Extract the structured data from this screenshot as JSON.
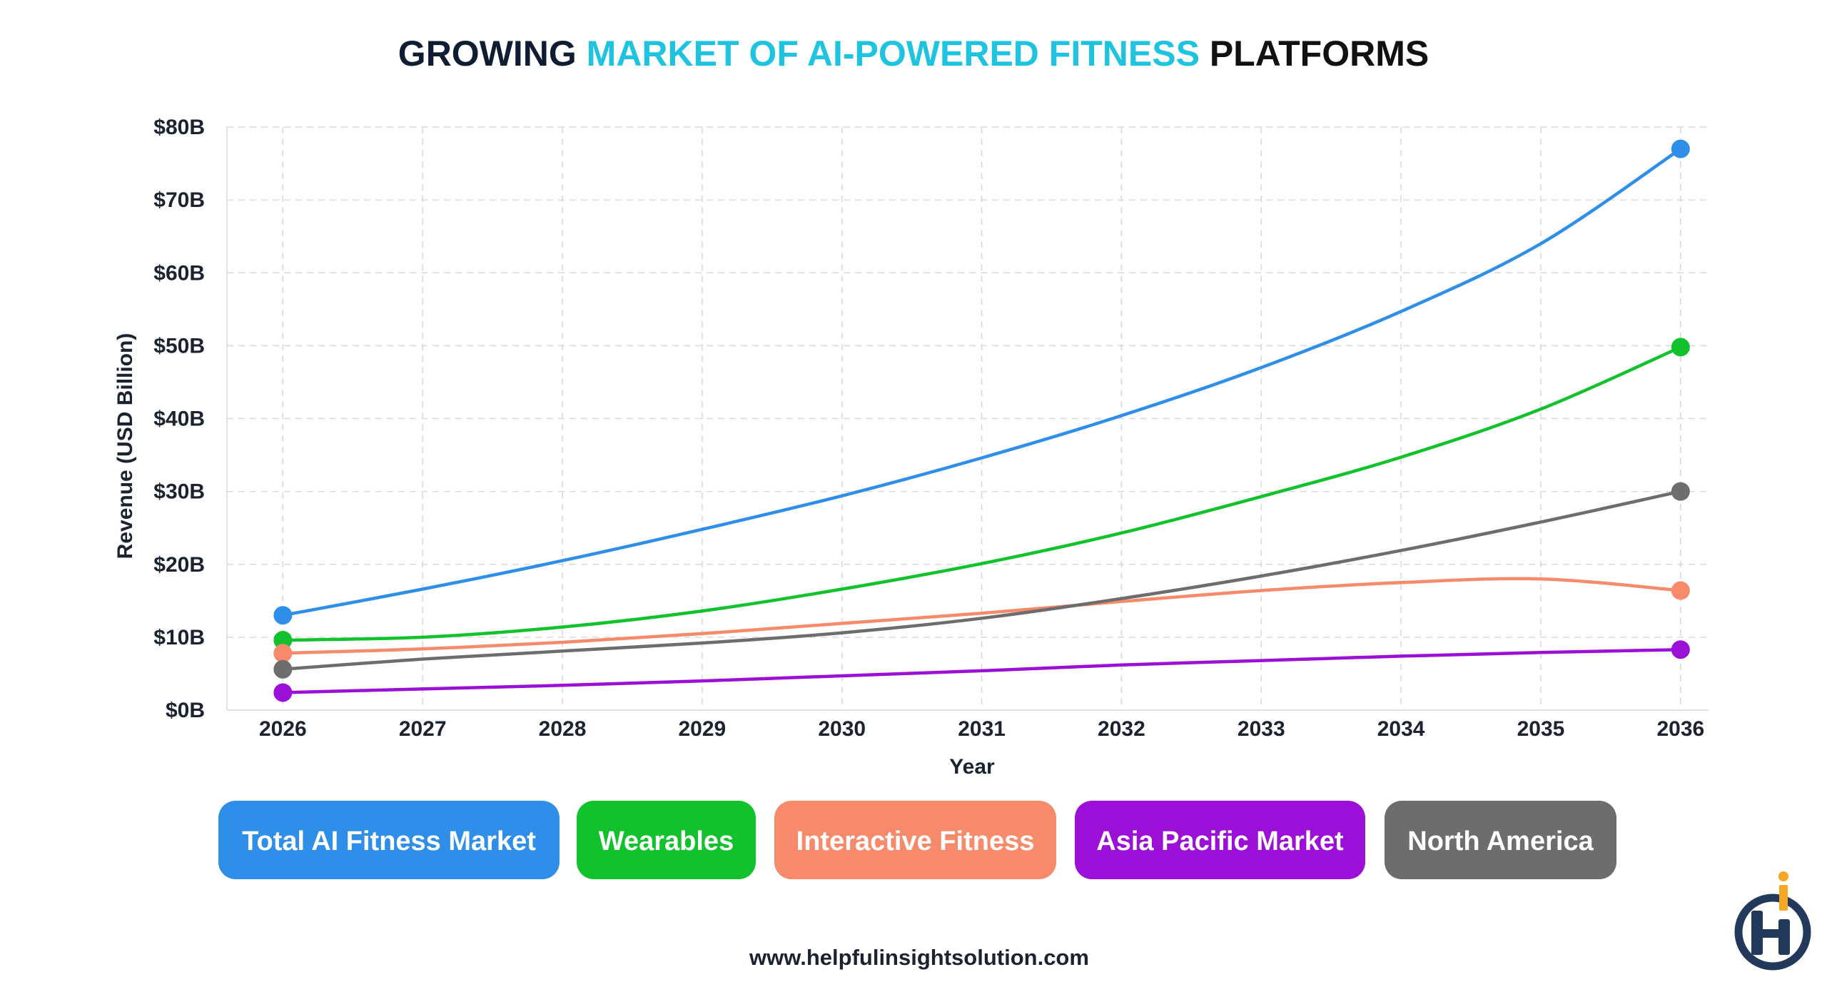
{
  "title": {
    "part1": "GROWING ",
    "part2": "MARKET OF AI-POWERED FITNESS",
    "part3": " PLATFORMS",
    "color_dark": "#0f1d33",
    "color_accent": "#1ec3e0",
    "color_black": "#111111"
  },
  "footer": {
    "url": "www.helpfulinsightsolution.com"
  },
  "logo": {
    "icon": "helpful-insight-logo",
    "color_dark": "#23395b",
    "color_accent": "#f5a623"
  },
  "chart_data": {
    "type": "line",
    "xlabel": "Year",
    "ylabel": "Revenue (USD Billion)",
    "x": [
      2026,
      2027,
      2028,
      2029,
      2030,
      2031,
      2032,
      2033,
      2034,
      2035,
      2036
    ],
    "xlim": [
      2025.6,
      2036.2
    ],
    "ylim": [
      0,
      80
    ],
    "y_ticks": [
      "$0B",
      "$10B",
      "$20B",
      "$30B",
      "$40B",
      "$50B",
      "$60B",
      "$70B",
      "$80B"
    ],
    "y_tick_values": [
      0,
      10,
      20,
      30,
      40,
      50,
      60,
      70,
      80
    ],
    "grid": true,
    "legend_position": "bottom",
    "markers": "endpoints",
    "series": [
      {
        "name": "Total AI Fitness Market",
        "color": "#2f8fe8",
        "values": [
          13.0,
          16.6,
          20.5,
          24.8,
          29.4,
          34.6,
          40.4,
          47.0,
          54.7,
          64.0,
          77.0
        ]
      },
      {
        "name": "Wearables",
        "color": "#12c22d",
        "values": [
          9.6,
          10.0,
          11.4,
          13.6,
          16.6,
          20.1,
          24.3,
          29.3,
          34.7,
          41.3,
          49.8
        ]
      },
      {
        "name": "Interactive Fitness",
        "color": "#f78a6a",
        "values": [
          7.8,
          8.4,
          9.3,
          10.5,
          11.9,
          13.3,
          14.9,
          16.4,
          17.5,
          18.0,
          16.4
        ]
      },
      {
        "name": "Asia Pacific Market",
        "color": "#9b0fd6",
        "values": [
          2.4,
          2.9,
          3.4,
          4.0,
          4.7,
          5.4,
          6.2,
          6.8,
          7.4,
          7.9,
          8.3
        ]
      },
      {
        "name": "North America",
        "color": "#6d6d6d",
        "values": [
          5.6,
          7.0,
          8.1,
          9.2,
          10.6,
          12.6,
          15.3,
          18.4,
          21.9,
          25.8,
          30.0
        ]
      }
    ]
  }
}
